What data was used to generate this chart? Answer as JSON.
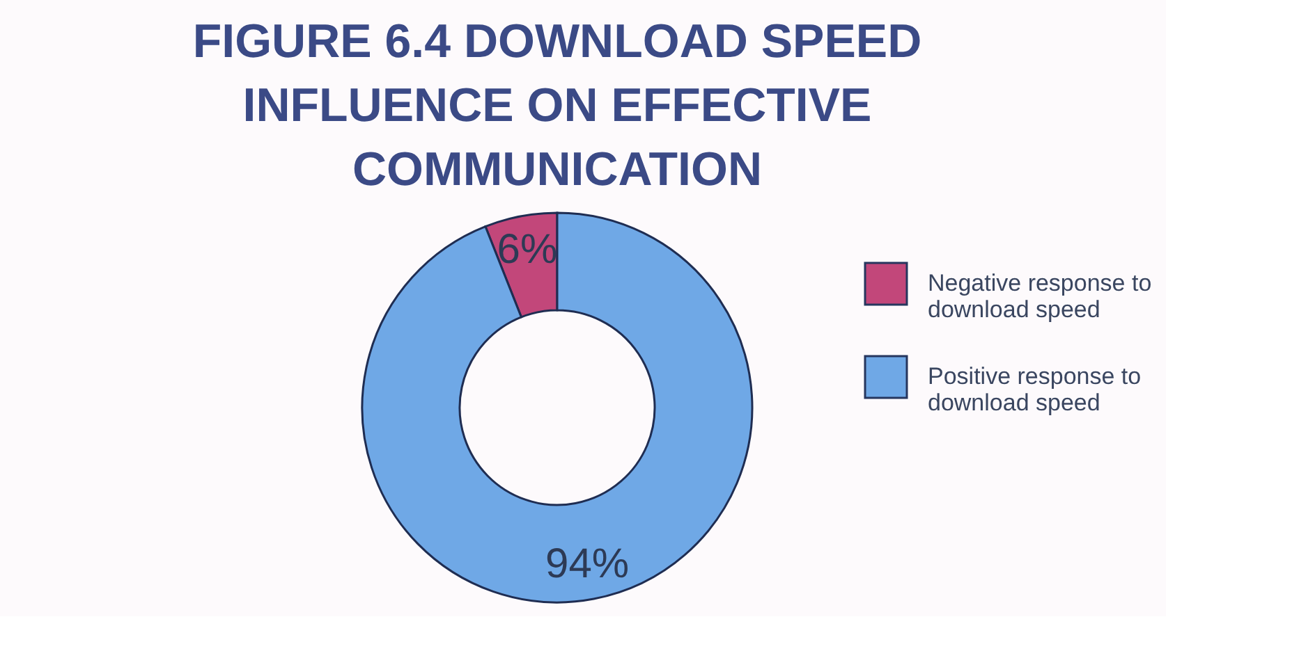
{
  "chart_data": {
    "type": "donut",
    "title": "FIGURE 6.4  DOWNLOAD SPEED INFLUENCE ON EFFECTIVE COMMUNICATION",
    "categories": [
      "Negative response to download speed",
      "Positive response to download speed"
    ],
    "values": [
      6,
      94
    ],
    "colors": [
      "#c2477a",
      "#6fa8e6"
    ],
    "value_labels": [
      "6%",
      "94%"
    ],
    "legend": "right"
  }
}
